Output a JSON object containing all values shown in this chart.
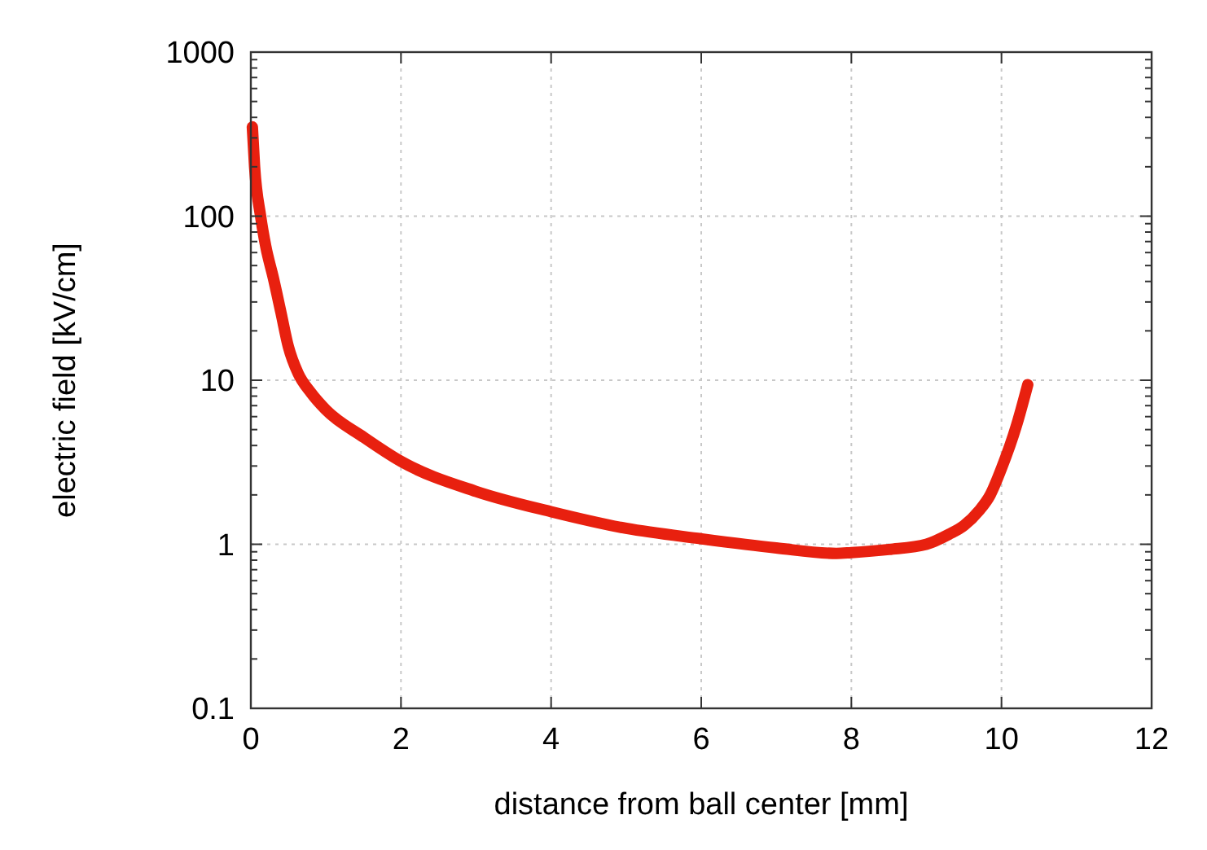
{
  "chart_data": {
    "type": "line",
    "xlabel": "distance from ball center [mm]",
    "ylabel": "electric field [kV/cm]",
    "log": "y",
    "grid": true,
    "marker": "none",
    "line_style": "solid",
    "xlim": [
      0,
      12
    ],
    "xticks": [
      0,
      2,
      4,
      6,
      8,
      10,
      12
    ],
    "ylim": [
      0.1,
      1000
    ],
    "yticks": [
      0.1,
      1,
      10,
      100,
      1000
    ],
    "series": [
      {
        "color": "#e8200f",
        "x": [
          0.02,
          0.05,
          0.13,
          0.2,
          0.3,
          0.4,
          0.5,
          0.63,
          0.8,
          1,
          1.5,
          2,
          3,
          4,
          5,
          6,
          7,
          7.8,
          8,
          8.5,
          9,
          9.3,
          9.5,
          9.7,
          9.85,
          10,
          10.2,
          10.35
        ],
        "values": [
          350,
          200,
          100,
          65,
          42,
          26,
          16,
          11,
          8.4,
          6.6,
          4.5,
          3.2,
          2.1,
          1.58,
          1.25,
          1.08,
          0.95,
          0.88,
          0.89,
          0.93,
          1.0,
          1.15,
          1.3,
          1.6,
          2,
          2.9,
          5.3,
          9.4
        ]
      }
    ]
  }
}
